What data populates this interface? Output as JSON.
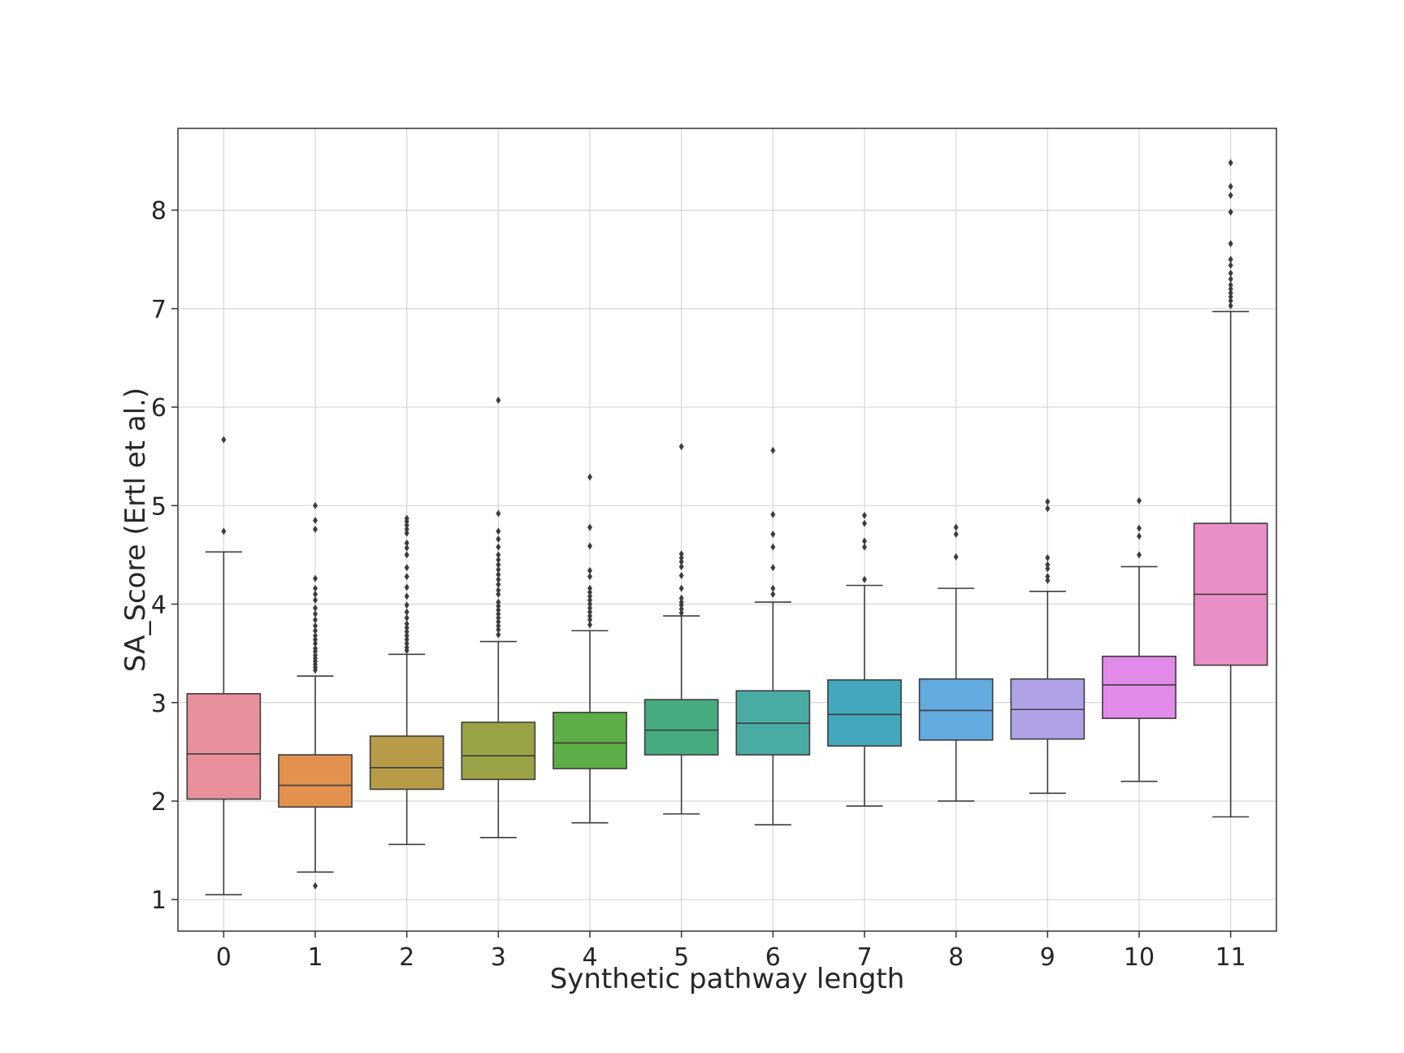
{
  "chart_data": {
    "type": "box",
    "xlabel": "Synthetic pathway length",
    "ylabel": "SA_Score (Ertl et al.)",
    "ylim": [
      0.68,
      8.83
    ],
    "yticks": [
      1,
      2,
      3,
      4,
      5,
      6,
      7,
      8
    ],
    "grid": true,
    "categories": [
      "0",
      "1",
      "2",
      "3",
      "4",
      "5",
      "6",
      "7",
      "8",
      "9",
      "10",
      "11"
    ],
    "colors": [
      "#e8919c",
      "#e2914f",
      "#b89b48",
      "#9ba347",
      "#5fad46",
      "#47ab82",
      "#49aca3",
      "#44a8bd",
      "#62aae0",
      "#b1a2e8",
      "#e28ae8",
      "#e98fc5"
    ],
    "boxes": [
      {
        "q1": 2.02,
        "median": 2.48,
        "q3": 3.09,
        "whisker_low": 1.05,
        "whisker_high": 4.53,
        "outliers": [
          4.74,
          5.67
        ]
      },
      {
        "q1": 1.94,
        "median": 2.16,
        "q3": 2.47,
        "whisker_low": 1.28,
        "whisker_high": 3.27,
        "outliers": [
          1.14,
          3.33,
          3.36,
          3.39,
          3.42,
          3.45,
          3.48,
          3.52,
          3.55,
          3.6,
          3.64,
          3.68,
          3.73,
          3.78,
          3.84,
          3.9,
          3.96,
          4.04,
          4.1,
          4.16,
          4.26,
          4.76,
          4.85,
          5.0
        ]
      },
      {
        "q1": 2.12,
        "median": 2.34,
        "q3": 2.66,
        "whisker_low": 1.56,
        "whisker_high": 3.49,
        "outliers": [
          3.53,
          3.56,
          3.6,
          3.64,
          3.68,
          3.72,
          3.76,
          3.8,
          3.86,
          3.92,
          3.99,
          4.08,
          4.17,
          4.28,
          4.37,
          4.5,
          4.57,
          4.62,
          4.72,
          4.76,
          4.8,
          4.84,
          4.87
        ]
      },
      {
        "q1": 2.22,
        "median": 2.46,
        "q3": 2.8,
        "whisker_low": 1.63,
        "whisker_high": 3.62,
        "outliers": [
          3.69,
          3.74,
          3.78,
          3.82,
          3.86,
          3.9,
          3.94,
          3.98,
          4.02,
          4.1,
          4.14,
          4.2,
          4.25,
          4.3,
          4.35,
          4.4,
          4.45,
          4.5,
          4.58,
          4.66,
          4.74,
          4.92,
          6.07
        ]
      },
      {
        "q1": 2.33,
        "median": 2.59,
        "q3": 2.9,
        "whisker_low": 1.78,
        "whisker_high": 3.73,
        "outliers": [
          3.79,
          3.84,
          3.88,
          3.92,
          3.96,
          4.0,
          4.04,
          4.08,
          4.12,
          4.16,
          4.28,
          4.34,
          4.59,
          4.78,
          5.29
        ]
      },
      {
        "q1": 2.47,
        "median": 2.72,
        "q3": 3.03,
        "whisker_low": 1.87,
        "whisker_high": 3.88,
        "outliers": [
          3.91,
          3.95,
          3.99,
          4.02,
          4.06,
          4.16,
          4.29,
          4.38,
          4.43,
          4.47,
          4.51,
          5.6
        ]
      },
      {
        "q1": 2.47,
        "median": 2.79,
        "q3": 3.12,
        "whisker_low": 1.76,
        "whisker_high": 4.02,
        "outliers": [
          4.1,
          4.16,
          4.37,
          4.58,
          4.71,
          4.91,
          5.56
        ]
      },
      {
        "q1": 2.56,
        "median": 2.88,
        "q3": 3.23,
        "whisker_low": 1.95,
        "whisker_high": 4.19,
        "outliers": [
          4.25,
          4.58,
          4.64,
          4.82,
          4.9
        ]
      },
      {
        "q1": 2.62,
        "median": 2.92,
        "q3": 3.24,
        "whisker_low": 2.0,
        "whisker_high": 4.16,
        "outliers": [
          4.48,
          4.71,
          4.78
        ]
      },
      {
        "q1": 2.63,
        "median": 2.93,
        "q3": 3.24,
        "whisker_low": 2.08,
        "whisker_high": 4.13,
        "outliers": [
          4.24,
          4.28,
          4.36,
          4.4,
          4.47,
          4.97,
          5.04
        ]
      },
      {
        "q1": 2.84,
        "median": 3.18,
        "q3": 3.47,
        "whisker_low": 2.2,
        "whisker_high": 4.38,
        "outliers": [
          4.5,
          4.69,
          4.77,
          5.05
        ]
      },
      {
        "q1": 3.38,
        "median": 4.1,
        "q3": 4.82,
        "whisker_low": 1.84,
        "whisker_high": 6.97,
        "outliers": [
          7.03,
          7.08,
          7.12,
          7.16,
          7.2,
          7.24,
          7.3,
          7.36,
          7.44,
          7.5,
          7.66,
          7.98,
          8.15,
          8.24,
          8.48
        ]
      }
    ]
  }
}
